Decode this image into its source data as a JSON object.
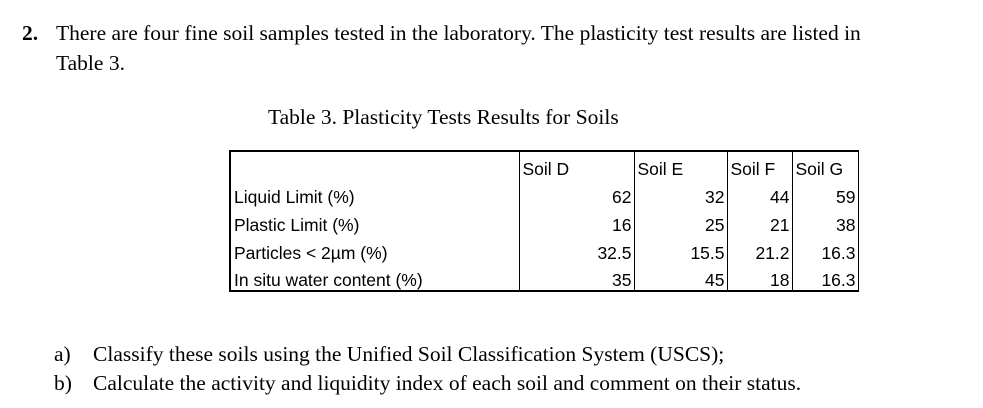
{
  "question": {
    "number": "2.",
    "line1": "There are four fine soil samples tested in the laboratory. The plasticity test results are listed in",
    "line2": "Table 3."
  },
  "table": {
    "caption": "Table 3. Plasticity Tests Results for Soils",
    "columns": [
      "",
      "Soil D",
      "Soil E",
      "Soil F",
      "Soil G"
    ],
    "rows": [
      {
        "label": "Liquid Limit (%)",
        "values": [
          "62",
          "32",
          "44",
          "59"
        ]
      },
      {
        "label": "Plastic Limit (%)",
        "values": [
          "16",
          "25",
          "21",
          "38"
        ]
      },
      {
        "label": "Particles < 2µm (%)",
        "values": [
          "32.5",
          "15.5",
          "21.2",
          "16.3"
        ]
      },
      {
        "label": "In situ water content (%)",
        "values": [
          "35",
          "45",
          "18",
          "16.3"
        ]
      }
    ]
  },
  "tasks": [
    {
      "label": "a)",
      "text": "Classify these soils using the Unified Soil Classification System (USCS);"
    },
    {
      "label": "b)",
      "text": "Calculate the activity and liquidity index of each soil and comment on their status."
    }
  ]
}
